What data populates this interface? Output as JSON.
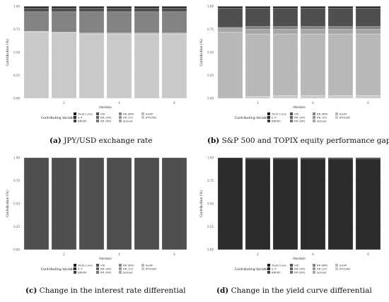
{
  "legend": {
    "title": "Contributing Variable",
    "entries": [
      "Yield curve",
      "Δ i*",
      "BRENT",
      "VIX",
      "RR (1M)",
      "RR (3M)",
      "RR (6M)",
      "RR (1Y)",
      "Spread",
      "EGAP",
      "JPY/USD"
    ]
  },
  "colors": {
    "Yield curve": "#1a1a1a",
    "Δ i*": "#2c2c2c",
    "BRENT": "#3d3d3d",
    "VIX": "#4f4f4f",
    "RR (1M)": "#606060",
    "RR (3M)": "#727272",
    "RR (6M)": "#838383",
    "RR (1Y)": "#959595",
    "Spread": "#a6a6a6",
    "EGAP": "#b8b8b8",
    "JPY/USD": "#c9c9c9"
  },
  "captions": [
    {
      "label": "(a)",
      "text": " JPY/USD exchange rate"
    },
    {
      "label": "(b)",
      "text": " S&P 500 and TOPIX equity performance gap"
    },
    {
      "label": "(c)",
      "text": " Change in the interest rate differential"
    },
    {
      "label": "(d)",
      "text": " Change in the yield curve differential"
    }
  ],
  "chart_data": [
    {
      "type": "bar",
      "stacked": true,
      "xlabel": "Horizon",
      "ylabel": "Contribution (%)",
      "ylim": [
        0,
        1
      ],
      "yticks": [
        "0.00",
        "0.25",
        "0.50",
        "0.75",
        "1.00"
      ],
      "x": [
        1,
        2,
        3,
        4,
        5,
        6
      ],
      "xticks": [
        2,
        4,
        6
      ],
      "series": [
        {
          "name": "JPY/USD",
          "values": [
            0.72,
            0.71,
            0.7,
            0.7,
            0.7,
            0.7
          ]
        },
        {
          "name": "EGAP",
          "values": [
            0.01,
            0.01,
            0.01,
            0.01,
            0.01,
            0.01
          ]
        },
        {
          "name": "RR (6M)",
          "values": [
            0.21,
            0.22,
            0.23,
            0.23,
            0.23,
            0.23
          ]
        },
        {
          "name": "VIX",
          "values": [
            0.04,
            0.04,
            0.04,
            0.04,
            0.04,
            0.04
          ]
        },
        {
          "name": "Yield curve",
          "values": [
            0.02,
            0.02,
            0.02,
            0.02,
            0.02,
            0.02
          ]
        }
      ]
    },
    {
      "type": "bar",
      "stacked": true,
      "xlabel": "Horizon",
      "ylabel": "Contribution (%)",
      "ylim": [
        0,
        1
      ],
      "yticks": [
        "0.00",
        "0.25",
        "0.50",
        "0.75",
        "1.00"
      ],
      "x": [
        1,
        2,
        3,
        4,
        5,
        6
      ],
      "xticks": [
        2,
        4,
        6
      ],
      "series": [
        {
          "name": "JPY/USD",
          "values": [
            0.0,
            0.02,
            0.03,
            0.03,
            0.03,
            0.03
          ]
        },
        {
          "name": "EGAP",
          "values": [
            0.72,
            0.68,
            0.67,
            0.67,
            0.67,
            0.67
          ]
        },
        {
          "name": "Spread",
          "values": [
            0.05,
            0.05,
            0.05,
            0.05,
            0.05,
            0.05
          ]
        },
        {
          "name": "RR (6M)",
          "values": [
            0.0,
            0.03,
            0.03,
            0.03,
            0.03,
            0.03
          ]
        },
        {
          "name": "VIX",
          "values": [
            0.21,
            0.2,
            0.2,
            0.2,
            0.2,
            0.2
          ]
        },
        {
          "name": "Yield curve",
          "values": [
            0.02,
            0.02,
            0.02,
            0.02,
            0.02,
            0.02
          ]
        }
      ]
    },
    {
      "type": "bar",
      "stacked": true,
      "xlabel": "Horizon",
      "ylabel": "Contribution (%)",
      "ylim": [
        0,
        1
      ],
      "yticks": [
        "0.00",
        "0.25",
        "0.50",
        "0.75",
        "1.00"
      ],
      "x": [
        1,
        2,
        3,
        4,
        5,
        6
      ],
      "xticks": [
        2,
        4,
        6
      ],
      "series": [
        {
          "name": "VIX",
          "values": [
            1.0,
            1.0,
            1.0,
            1.0,
            1.0,
            1.0
          ]
        }
      ]
    },
    {
      "type": "bar",
      "stacked": true,
      "xlabel": "Horizon",
      "ylabel": "Contribution (%)",
      "ylim": [
        0,
        1
      ],
      "yticks": [
        "0.00",
        "0.25",
        "0.50",
        "0.75",
        "1.00"
      ],
      "x": [
        1,
        2,
        3,
        4,
        5,
        6
      ],
      "xticks": [
        2,
        4,
        6
      ],
      "series": [
        {
          "name": "Δ i*",
          "values": [
            1.0,
            0.99,
            0.99,
            0.99,
            0.99,
            0.99
          ]
        },
        {
          "name": "Yield curve",
          "values": [
            0.0,
            0.01,
            0.01,
            0.01,
            0.01,
            0.01
          ]
        }
      ]
    }
  ]
}
